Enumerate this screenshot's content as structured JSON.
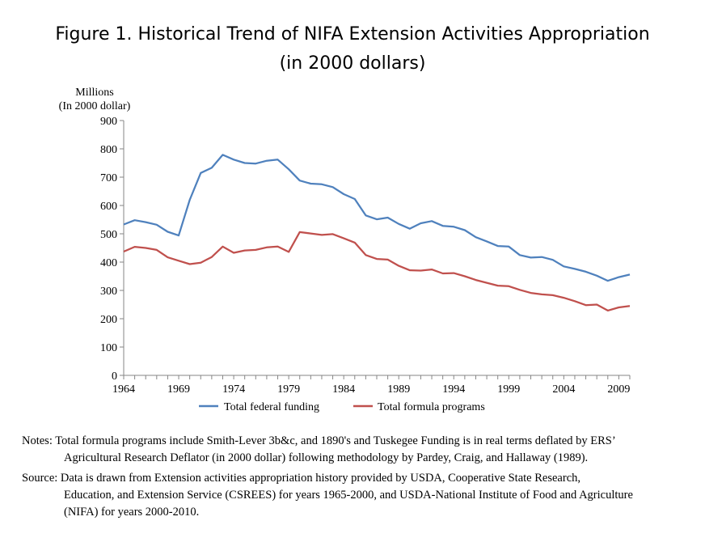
{
  "title_line1": "Figure 1. Historical Trend of NIFA Extension Activities Appropriation",
  "title_line2": "(in 2000 dollars)",
  "chart_data": {
    "type": "line",
    "ylabel_line1": "Millions",
    "ylabel_line2": "(In 2000 dollar)",
    "ylim": [
      0,
      900
    ],
    "yticks": [
      0,
      100,
      200,
      300,
      400,
      500,
      600,
      700,
      800,
      900
    ],
    "xlim": [
      1964,
      2010
    ],
    "xticks": [
      1964,
      1969,
      1974,
      1979,
      1984,
      1989,
      1994,
      1999,
      2004,
      2009
    ],
    "legend_position": "bottom",
    "grid": false,
    "x": [
      1964,
      1965,
      1966,
      1967,
      1968,
      1969,
      1970,
      1971,
      1972,
      1973,
      1974,
      1975,
      1976,
      1977,
      1978,
      1979,
      1980,
      1981,
      1982,
      1983,
      1984,
      1985,
      1986,
      1987,
      1988,
      1989,
      1990,
      1991,
      1992,
      1993,
      1994,
      1995,
      1996,
      1997,
      1998,
      1999,
      2000,
      2001,
      2002,
      2003,
      2004,
      2005,
      2006,
      2007,
      2008,
      2009,
      2010
    ],
    "series": [
      {
        "name": "Total federal funding",
        "color": "#4f81bd",
        "values": [
          533,
          548,
          541,
          532,
          507,
          494,
          620,
          715,
          733,
          779,
          762,
          750,
          748,
          758,
          762,
          728,
          688,
          677,
          675,
          665,
          640,
          623,
          565,
          551,
          557,
          535,
          518,
          537,
          545,
          528,
          525,
          513,
          488,
          473,
          457,
          455,
          425,
          416,
          418,
          408,
          385,
          376,
          366,
          352,
          334,
          347,
          356
        ]
      },
      {
        "name": "Total formula programs",
        "color": "#c0504d",
        "values": [
          437,
          454,
          450,
          443,
          417,
          405,
          393,
          398,
          418,
          455,
          433,
          441,
          443,
          452,
          455,
          436,
          506,
          501,
          496,
          499,
          484,
          469,
          425,
          411,
          409,
          387,
          371,
          370,
          374,
          360,
          361,
          350,
          337,
          327,
          317,
          315,
          302,
          291,
          286,
          283,
          274,
          262,
          248,
          250,
          229,
          240,
          245
        ]
      }
    ]
  },
  "notes": {
    "notes_line1": "Notes: Total formula programs include Smith-Lever 3b&c, and 1890's and Tuskegee Funding is in real terms deflated by ERS’",
    "notes_line2": "Agricultural Research Deflator (in 2000 dollar) following methodology by Pardey, Craig, and Hallaway (1989).",
    "source_line1": "Source: Data is drawn from Extension activities appropriation history provided by USDA, Cooperative State Research,",
    "source_line2": "Education, and Extension Service (CSREES) for years 1965-2000, and USDA-National Institute of Food and Agriculture",
    "source_line3": "(NIFA) for years 2000-2010."
  }
}
